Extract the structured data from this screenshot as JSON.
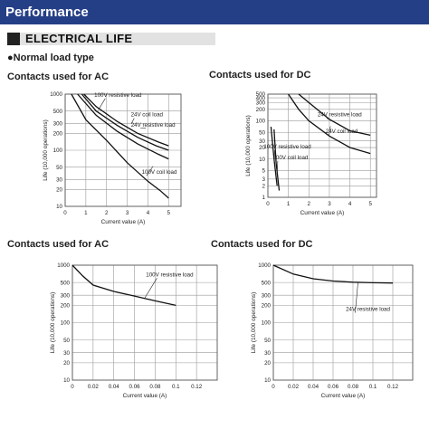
{
  "page": {
    "header_title": "Performance",
    "section_title": "ELECTRICAL LIFE",
    "load_type_bullet": "●",
    "load_type": "Normal load type",
    "colors": {
      "header_bg": "#253f86",
      "section_bg": "#e2e2e2",
      "curve": "#111111"
    }
  },
  "chart_data": [
    {
      "type": "line",
      "heading": "Contacts used for AC",
      "xlabel": "Current value (A)",
      "ylabel": "Life (10,000 operations)",
      "xscale": "linear",
      "yscale": "log",
      "xlim": [
        0,
        5.6
      ],
      "ylim": [
        10,
        1000
      ],
      "xticks": [
        0,
        1,
        2,
        3,
        4,
        5
      ],
      "yticks": [
        10,
        20,
        30,
        50,
        100,
        200,
        300,
        500,
        1000
      ],
      "ytick_labels": [
        "10",
        "20",
        "30",
        "50",
        "100",
        "200",
        "300",
        "500",
        "1000"
      ],
      "series": [
        {
          "name": "100V resistive load",
          "x": [
            0.8,
            1.5,
            2.5,
            3.5,
            4.4,
            5.0
          ],
          "y": [
            1000,
            500,
            280,
            170,
            120,
            100
          ],
          "label_at": [
            2.55,
            900
          ]
        },
        {
          "name": "24V coil load",
          "x": [
            0.6,
            1.5,
            2.5,
            3.5,
            4.5,
            5.0
          ],
          "y": [
            1000,
            420,
            220,
            130,
            85,
            70
          ],
          "label_at": [
            3.95,
            400
          ]
        },
        {
          "name": "24V resistive load",
          "x": [
            0.9,
            1.5,
            2.5,
            3.5,
            4.5,
            5.0
          ],
          "y": [
            1000,
            600,
            330,
            200,
            140,
            120
          ],
          "label_at": [
            4.25,
            265
          ]
        },
        {
          "name": "100V coil load",
          "x": [
            0.3,
            1.0,
            2.0,
            3.0,
            4.0,
            4.6,
            5.0
          ],
          "y": [
            1000,
            350,
            150,
            60,
            28,
            19,
            14
          ],
          "label_at": [
            4.55,
            38
          ]
        }
      ]
    },
    {
      "type": "line",
      "heading": "Contacts used for DC",
      "xlabel": "Current value (A)",
      "ylabel": "Life (10,000 operations)",
      "xscale": "linear",
      "yscale": "log",
      "xlim": [
        0,
        5.3
      ],
      "ylim": [
        1,
        500
      ],
      "xticks": [
        0,
        1,
        2,
        3,
        4,
        5
      ],
      "yticks": [
        1,
        2,
        3,
        5,
        10,
        20,
        30,
        50,
        100,
        200,
        300,
        400,
        500
      ],
      "ytick_labels": [
        "1",
        "2",
        "3",
        "5",
        "10",
        "20",
        "30",
        "50",
        "100",
        "200",
        "300",
        "400",
        "500"
      ],
      "series": [
        {
          "name": "24V resistive load",
          "x": [
            1.5,
            2.0,
            3.0,
            4.0,
            5.0
          ],
          "y": [
            500,
            300,
            110,
            55,
            42
          ],
          "label_at": [
            3.5,
            130
          ]
        },
        {
          "name": "24V coil load",
          "x": [
            1.0,
            1.5,
            2.0,
            3.0,
            4.0,
            5.0
          ],
          "y": [
            500,
            200,
            100,
            40,
            20,
            14
          ],
          "label_at": [
            3.6,
            48
          ]
        },
        {
          "name": "100V resistive load",
          "x": [
            0.15,
            0.3,
            0.45
          ],
          "y": [
            70,
            10,
            2
          ],
          "label_at": [
            0.95,
            19
          ]
        },
        {
          "name": "100V coil load",
          "x": [
            0.3,
            0.4,
            0.55
          ],
          "y": [
            60,
            8,
            1.5
          ],
          "label_at": [
            1.1,
            10
          ]
        }
      ]
    },
    {
      "type": "line",
      "heading": "Contacts used for AC",
      "xlabel": "Current value (A)",
      "ylabel": "Life (10,000 operations)",
      "xscale": "linear",
      "yscale": "log",
      "xlim": [
        0,
        0.14
      ],
      "ylim": [
        10,
        1000
      ],
      "xticks": [
        0,
        0.02,
        0.04,
        0.06,
        0.08,
        0.1,
        0.12
      ],
      "xtick_labels": [
        "0",
        "0.02",
        "0.04",
        "0.06",
        "0.08",
        "0.1",
        "0.12"
      ],
      "yticks": [
        10,
        20,
        30,
        50,
        100,
        200,
        300,
        500,
        1000
      ],
      "ytick_labels": [
        "10",
        "20",
        "30",
        "50",
        "100",
        "200",
        "300",
        "500",
        "1000"
      ],
      "series": [
        {
          "name": "100V resistive load",
          "x": [
            0,
            0.01,
            0.02,
            0.04,
            0.06,
            0.08,
            0.1
          ],
          "y": [
            1000,
            650,
            450,
            350,
            290,
            240,
            200
          ],
          "label_at": [
            0.094,
            640
          ]
        }
      ]
    },
    {
      "type": "line",
      "heading": "Contacts used for DC",
      "xlabel": "Current value (A)",
      "ylabel": "Life (10,000 operations)",
      "xscale": "linear",
      "yscale": "log",
      "xlim": [
        0,
        0.14
      ],
      "ylim": [
        10,
        1000
      ],
      "xticks": [
        0,
        0.02,
        0.04,
        0.06,
        0.08,
        0.1,
        0.12
      ],
      "xtick_labels": [
        "0",
        "0.02",
        "0.04",
        "0.06",
        "0.08",
        "0.1",
        "0.12"
      ],
      "yticks": [
        10,
        20,
        30,
        50,
        100,
        200,
        300,
        500,
        1000
      ],
      "ytick_labels": [
        "10",
        "20",
        "30",
        "50",
        "100",
        "200",
        "300",
        "500",
        "1000"
      ],
      "series": [
        {
          "name": "24V resistive load",
          "x": [
            0,
            0.02,
            0.04,
            0.06,
            0.08,
            0.1,
            0.12
          ],
          "y": [
            1000,
            700,
            580,
            530,
            505,
            495,
            490
          ],
          "label_at": [
            0.095,
            160
          ]
        }
      ]
    }
  ]
}
